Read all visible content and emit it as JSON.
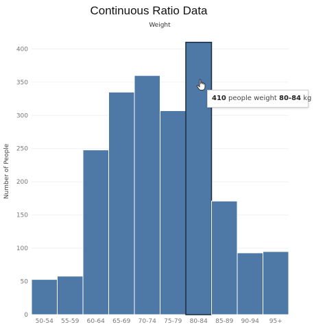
{
  "chart_data": {
    "type": "bar",
    "title": "Continuous Ratio Data",
    "subtitle": "Weight",
    "xlabel": "",
    "ylabel": "Number of People",
    "categories": [
      "50-54",
      "55-59",
      "60-64",
      "65-69",
      "70-74",
      "75-79",
      "80-84",
      "85-89",
      "90-94",
      "95+"
    ],
    "values": [
      53,
      58,
      248,
      335,
      360,
      307,
      410,
      171,
      93,
      95
    ],
    "ylim": [
      0,
      420
    ],
    "yticks": [
      0,
      50,
      100,
      150,
      200,
      250,
      300,
      350,
      400
    ],
    "grid": true,
    "highlighted_category": "80-84",
    "bar_color": "#4e79a7",
    "highlight_outline_color": "#1b2a3a"
  },
  "tooltip": {
    "value": "410",
    "text_before": " people weight ",
    "category": "80-84",
    "text_after": " kg"
  },
  "cursor_icon": "hand-pointer-icon"
}
